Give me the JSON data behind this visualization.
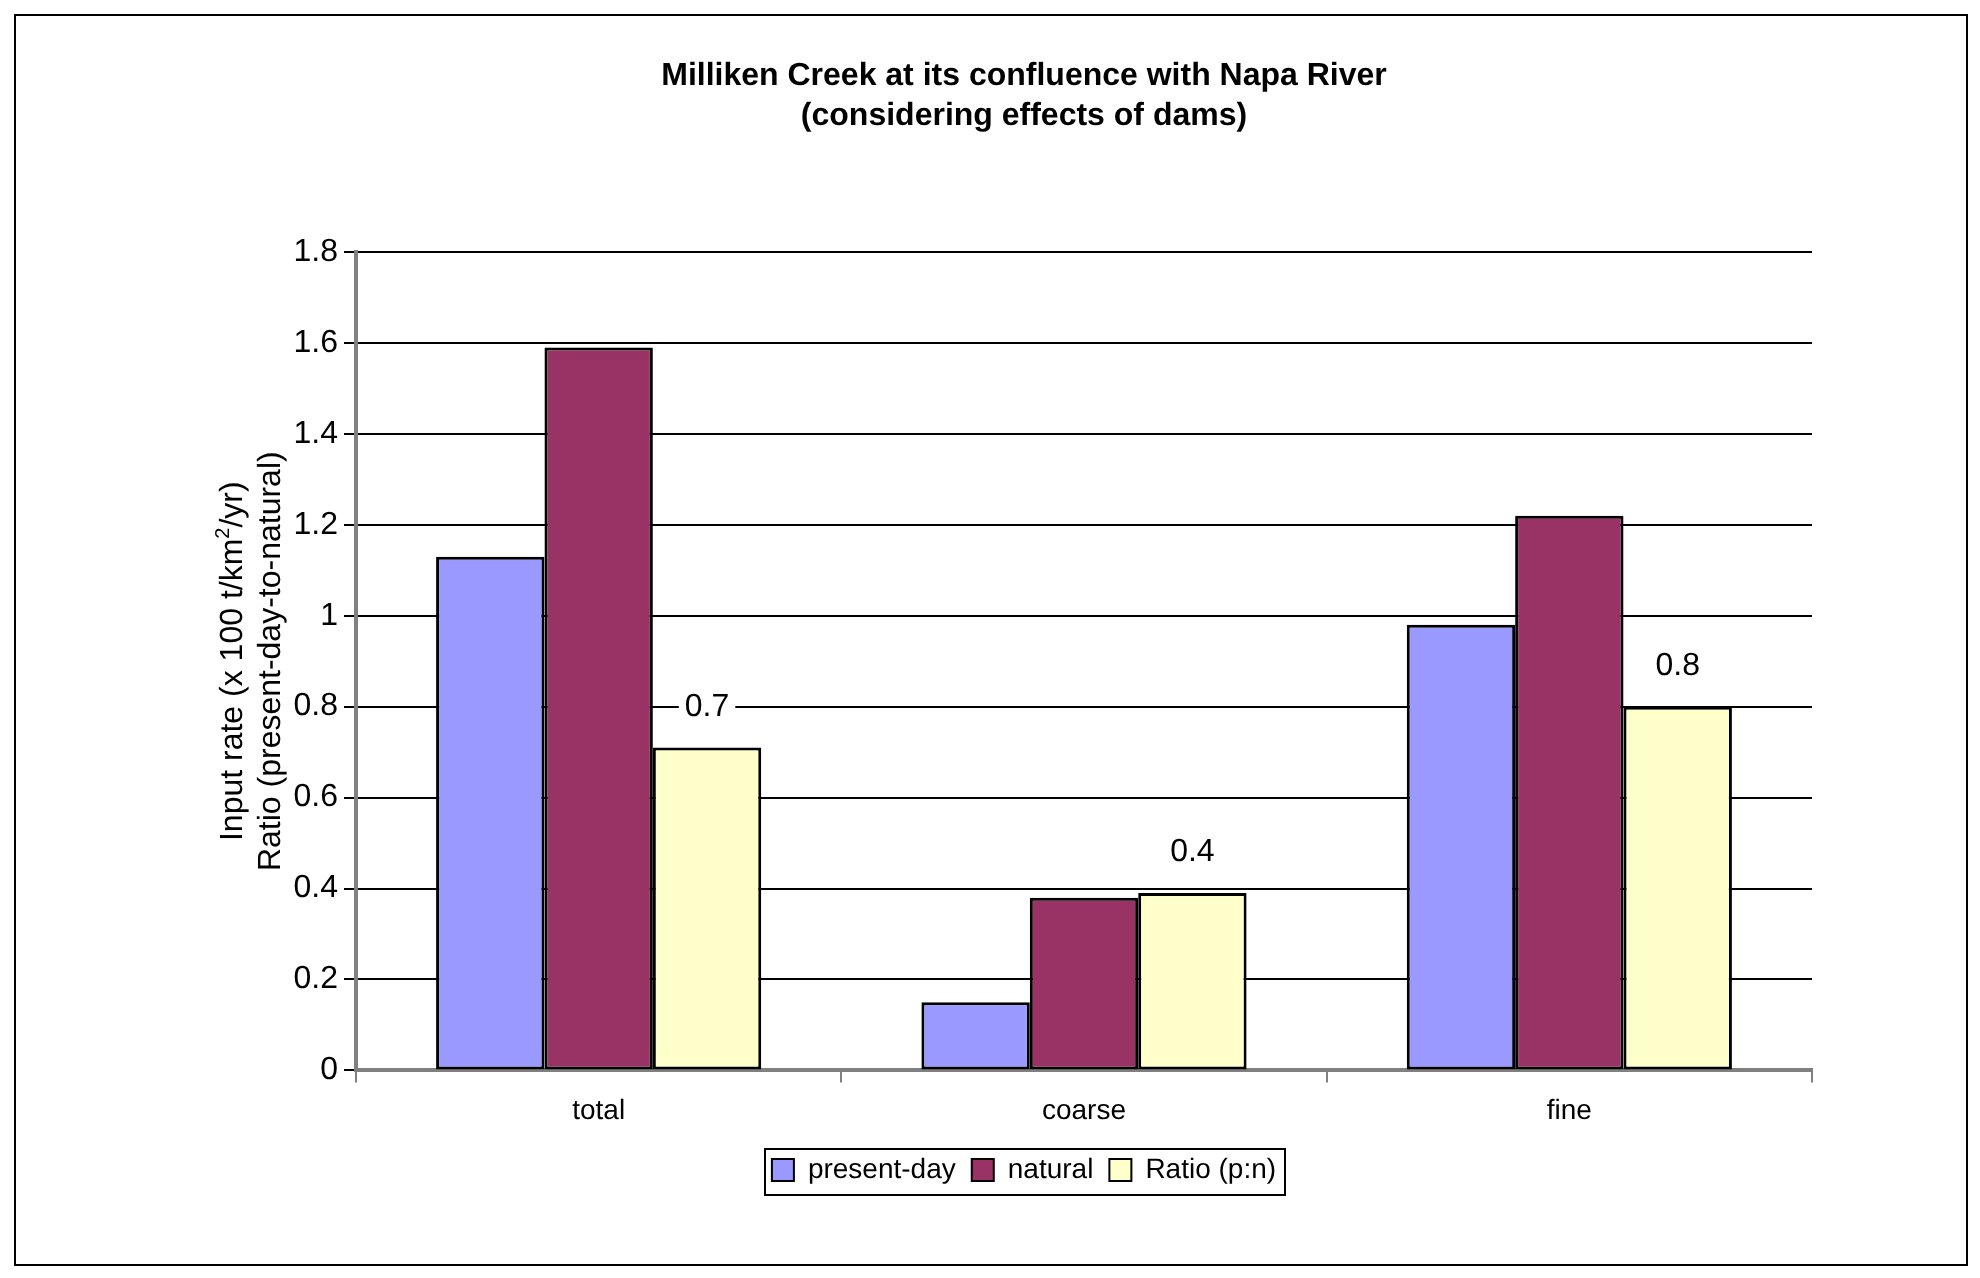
{
  "chart_data": {
    "type": "bar",
    "title": "Milliken Creek at its confluence with Napa River\n(considering effects of dams)",
    "ylabel": "Input rate (x 100 t/km$^{2}$/yr)\nRatio (present-day-to-natural)",
    "categories": [
      "total",
      "coarse",
      "fine"
    ],
    "series": [
      {
        "name": "present-day",
        "color": "#9999ff",
        "values": [
          1.13,
          0.15,
          0.98
        ]
      },
      {
        "name": "natural",
        "color": "#993366",
        "values": [
          1.59,
          0.38,
          1.22
        ]
      },
      {
        "name": "Ratio (p:n)",
        "color": "#ffffcc",
        "values": [
          0.71,
          0.39,
          0.8
        ],
        "value_labels": [
          "0.7",
          "0.4",
          "0.8"
        ]
      }
    ],
    "ylim": [
      0,
      1.8
    ],
    "yticks": [
      0,
      0.2,
      0.4,
      0.6,
      0.8,
      1,
      1.2,
      1.4,
      1.6,
      1.8
    ],
    "grid": "y",
    "legend": "bottom"
  }
}
